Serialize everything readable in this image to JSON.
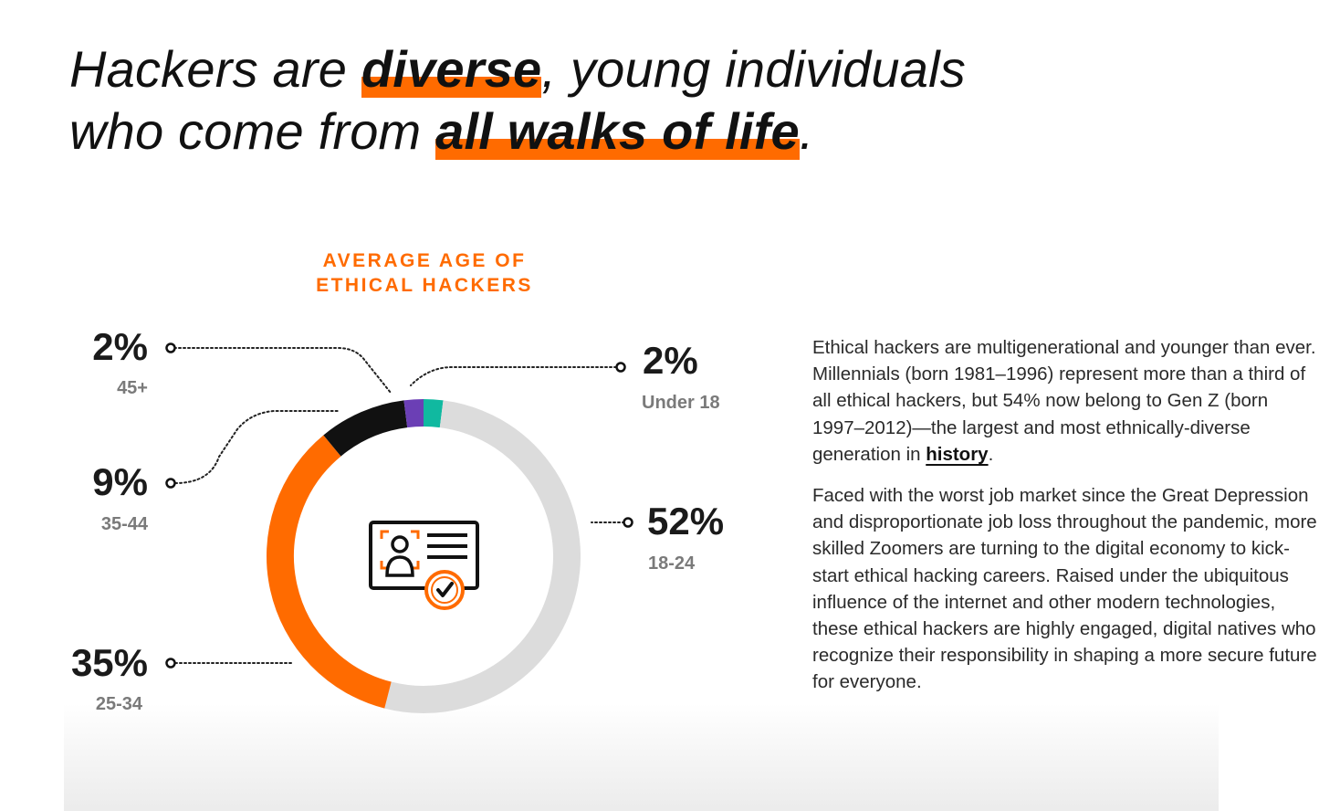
{
  "headline": {
    "l1_pre": "Hackers are ",
    "l1_hl": "diverse",
    "l1_post": ", young individuals",
    "l2_pre": "who come from ",
    "l2_hl": "all walks of life",
    "l2_post": "."
  },
  "colors": {
    "accent": "#ff6b00",
    "seg_18_24": "#dcdcdc",
    "seg_25_34": "#ff6b00",
    "seg_35_44": "#111111",
    "seg_45_plus": "#6b3fb5",
    "seg_under_18": "#10b9a0"
  },
  "chart_data": {
    "type": "pie",
    "variant": "donut",
    "title_line1": "AVERAGE AGE OF",
    "title_line2": "ETHICAL HACKERS",
    "categories": [
      "Under 18",
      "18-24",
      "25-34",
      "35-44",
      "45+"
    ],
    "values": [
      2,
      52,
      35,
      9,
      2
    ],
    "labels": [
      "2%",
      "52%",
      "35%",
      "9%",
      "2%"
    ],
    "center_icon": "id-card-check-icon"
  },
  "body": {
    "p1_pre": "Ethical hackers are multigenerational and younger than ever. Millennials (born 1981–1996) represent more than a third of all ethical hackers, but 54% now belong to Gen Z (born 1997–2012)—the largest and most ethnically-diverse generation in ",
    "p1_link": "history",
    "p1_post": ".",
    "p2": "Faced with the worst job market since the Great Depression and disproportionate job loss throughout the pandemic, more skilled Zoomers are turning to the digital economy to kick-start ethical hacking careers. Raised under the ubiquitous influence of the internet and other modern technologies, these ethical hackers are highly engaged, digital natives who recognize their responsibility in shaping a more secure future for everyone."
  }
}
